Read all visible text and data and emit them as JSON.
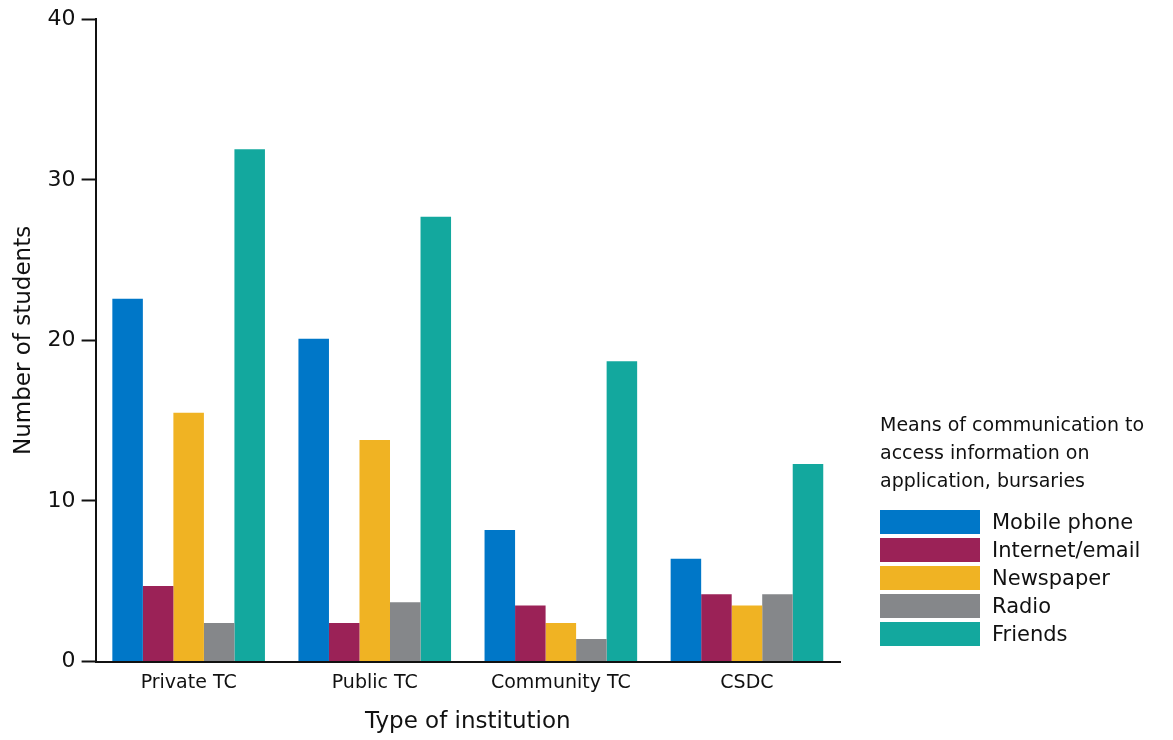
{
  "chart_data": {
    "type": "bar",
    "xlabel": "Type of institution",
    "ylabel": "Number of students",
    "legend_title": "Means of communication to access information on application, bursaries",
    "categories": [
      "Private TC",
      "Public TC",
      "Community TC",
      "CSDC"
    ],
    "series": [
      {
        "name": "Mobile phone",
        "color": "#0077c8",
        "values": [
          22.6,
          20.1,
          8.2,
          6.4
        ]
      },
      {
        "name": "Internet/email",
        "color": "#9b2257",
        "values": [
          4.7,
          2.4,
          3.5,
          4.2
        ]
      },
      {
        "name": "Newspaper",
        "color": "#f0b323",
        "values": [
          15.5,
          13.8,
          2.4,
          3.5
        ]
      },
      {
        "name": "Radio",
        "color": "#85878a",
        "values": [
          2.4,
          3.7,
          1.4,
          4.2
        ]
      },
      {
        "name": "Friends",
        "color": "#13a89e",
        "values": [
          31.9,
          27.7,
          18.7,
          12.3
        ]
      }
    ],
    "ylim": [
      0,
      40
    ],
    "yticks": [
      0,
      10,
      20,
      30,
      40
    ],
    "grid": false,
    "legend": "right"
  }
}
